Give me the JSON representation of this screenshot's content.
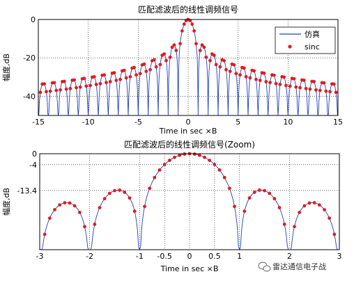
{
  "chart_data": [
    {
      "type": "line",
      "title": "匹配滤波后的线性调频信号",
      "xlabel": "Time in sec ×B",
      "ylabel": "幅度,dB",
      "xlim": [
        -15,
        15
      ],
      "ylim": [
        -50,
        0
      ],
      "xticks": [
        "-15",
        "-10",
        "-5",
        "0",
        "5",
        "10",
        "15"
      ],
      "yticks": [
        "0",
        "-20",
        "-40"
      ],
      "grid": true,
      "legend": {
        "position": "top-right",
        "entries": [
          "仿真",
          "sinc"
        ]
      },
      "series": [
        {
          "name": "仿真",
          "style": "line",
          "color": "#1f3fbf",
          "function": "20*log10(|sinc(x)|)",
          "floor_db": -50,
          "samples_per_unit": 20
        },
        {
          "name": "sinc",
          "style": "marker",
          "color": "#e31a1c",
          "function": "20*log10(|sinc(x)|)",
          "sample_step": 0.2
        }
      ]
    },
    {
      "type": "line",
      "title": "匹配滤波后的线性调频信号(Zoom)",
      "xlabel": "Time in sec ×B",
      "ylabel": "幅度,dB",
      "xlim": [
        -3,
        3
      ],
      "ylim": [
        -35,
        0
      ],
      "xticks": [
        "-3",
        "-2",
        "-1",
        "-0.5",
        "0",
        "0.5",
        "1",
        "2",
        "3"
      ],
      "xtick_values": [
        -3,
        -2,
        -1,
        -0.5,
        0,
        0.5,
        1,
        2,
        3
      ],
      "yticks": [
        "0",
        "-4",
        "-13.4"
      ],
      "ytick_values": [
        0,
        -4,
        -13.4
      ],
      "grid": true,
      "series": [
        {
          "name": "仿真",
          "style": "line",
          "color": "#1f3fbf",
          "function": "20*log10(|sinc(x)|)",
          "floor_db": -35,
          "samples_per_unit": 50
        },
        {
          "name": "sinc",
          "style": "marker",
          "color": "#e31a1c",
          "function": "20*log10(|sinc(x)|)",
          "sample_step": 0.1
        }
      ]
    }
  ],
  "watermark": {
    "text": "雷达通信电子战",
    "icon": "wechat-icon"
  }
}
